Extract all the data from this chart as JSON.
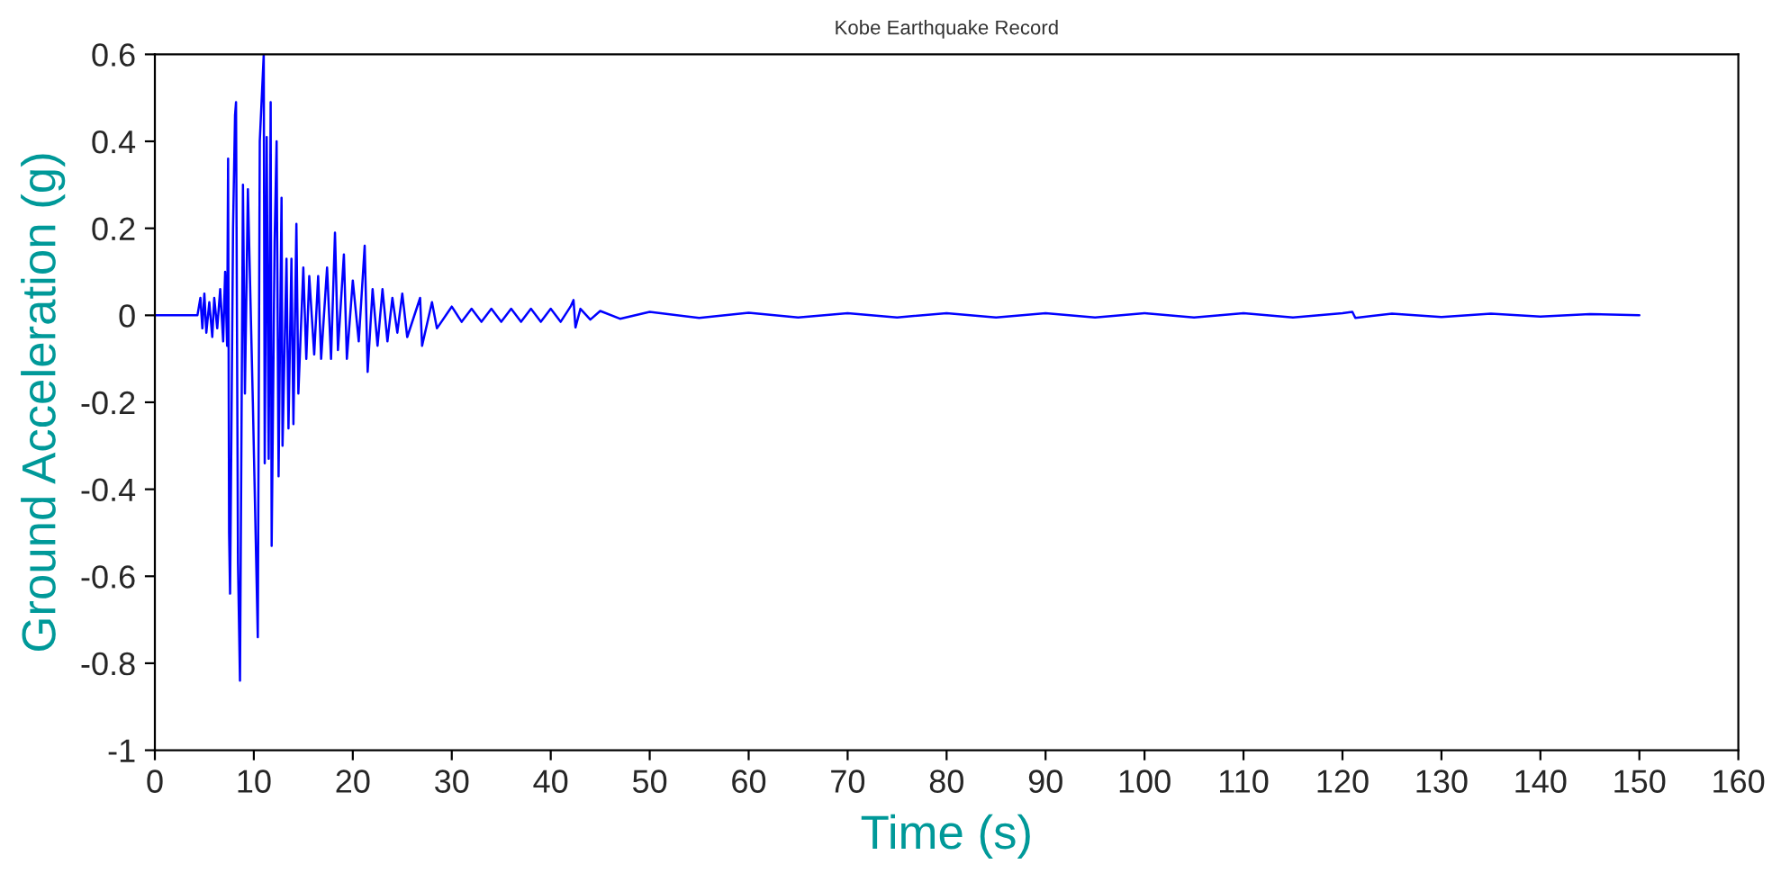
{
  "chart_data": {
    "type": "line",
    "title": "Kobe Earthquake Record",
    "xlabel": "Time (s)",
    "ylabel": "Ground Acceleration (g)",
    "xlim": [
      0,
      160
    ],
    "ylim": [
      -1,
      0.6
    ],
    "xticks": [
      0,
      10,
      20,
      30,
      40,
      50,
      60,
      70,
      80,
      90,
      100,
      110,
      120,
      130,
      140,
      150,
      160
    ],
    "yticks": [
      -1,
      -0.8,
      -0.6,
      -0.4,
      -0.2,
      0,
      0.2,
      0.4,
      0.6
    ],
    "grid": false,
    "marker": "none",
    "line_style": "solid",
    "series": [
      {
        "color": "#0000ff",
        "x": [
          0,
          4.3,
          4.6,
          4.8,
          5.0,
          5.2,
          5.5,
          5.8,
          6.0,
          6.3,
          6.6,
          6.9,
          7.1,
          7.3,
          7.4,
          7.5,
          7.6,
          7.9,
          8.1,
          8.2,
          8.4,
          8.6,
          8.9,
          9.1,
          9.4,
          9.9,
          10.4,
          10.6,
          11.0,
          11.1,
          11.3,
          11.5,
          11.7,
          11.8,
          12.1,
          12.3,
          12.5,
          12.8,
          12.9,
          13.3,
          13.5,
          13.8,
          14.0,
          14.3,
          14.5,
          15.0,
          15.3,
          15.6,
          16.1,
          16.5,
          16.8,
          17.4,
          17.8,
          18.2,
          18.5,
          19.1,
          19.4,
          20.0,
          20.6,
          21.2,
          21.5,
          22.0,
          22.5,
          23.0,
          23.5,
          24.0,
          24.5,
          25.0,
          25.5,
          26.8,
          27.0,
          28.0,
          28.5,
          30,
          31,
          32,
          33,
          34,
          35,
          36,
          37,
          38,
          39,
          40,
          41,
          42.0,
          42.3,
          42.5,
          43,
          44,
          45,
          47,
          50,
          55,
          60,
          65,
          70,
          75,
          80,
          85,
          90,
          95,
          100,
          105,
          110,
          115,
          120,
          121,
          121.3,
          125,
          130,
          135,
          140,
          145,
          150
        ],
        "values": [
          0,
          0,
          0.04,
          -0.03,
          0.05,
          -0.04,
          0.03,
          -0.05,
          0.04,
          -0.03,
          0.06,
          -0.06,
          0.1,
          -0.07,
          0.36,
          -0.5,
          -0.64,
          0.2,
          0.46,
          0.49,
          -0.57,
          -0.84,
          0.3,
          -0.18,
          0.29,
          -0.2,
          -0.74,
          0.4,
          0.6,
          -0.34,
          0.41,
          -0.33,
          0.49,
          -0.53,
          0.17,
          0.4,
          -0.37,
          0.27,
          -0.3,
          0.13,
          -0.26,
          0.13,
          -0.25,
          0.21,
          -0.18,
          0.11,
          -0.1,
          0.09,
          -0.09,
          0.09,
          -0.1,
          0.11,
          -0.1,
          0.19,
          -0.08,
          0.14,
          -0.1,
          0.08,
          -0.06,
          0.16,
          -0.13,
          0.06,
          -0.07,
          0.06,
          -0.06,
          0.04,
          -0.04,
          0.05,
          -0.05,
          0.04,
          -0.07,
          0.03,
          -0.03,
          0.02,
          -0.015,
          0.015,
          -0.015,
          0.015,
          -0.015,
          0.015,
          -0.015,
          0.015,
          -0.015,
          0.015,
          -0.015,
          0.02,
          0.035,
          -0.028,
          0.015,
          -0.01,
          0.01,
          -0.008,
          0.008,
          -0.006,
          0.006,
          -0.005,
          0.005,
          -0.005,
          0.005,
          -0.005,
          0.005,
          -0.005,
          0.005,
          -0.005,
          0.005,
          -0.005,
          0.005,
          0.008,
          -0.006,
          0.004,
          -0.004,
          0.004,
          -0.003,
          0.003,
          0
        ]
      }
    ]
  }
}
